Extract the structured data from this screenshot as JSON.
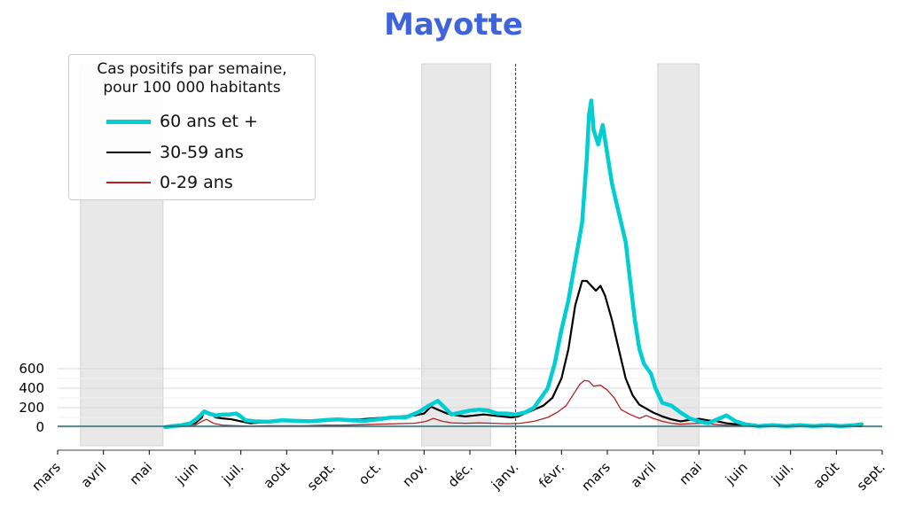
{
  "title": "Mayotte",
  "legend": {
    "title_line1": "Cas positifs par semaine,",
    "title_line2": "pour 100 000 habitants",
    "items": [
      {
        "label": "60 ans et +",
        "color": "#00ced1"
      },
      {
        "label": "30-59 ans",
        "color": "#000000"
      },
      {
        "label": "0-29 ans",
        "color": "#b22222"
      }
    ]
  },
  "chart_data": {
    "type": "line",
    "title": "Mayotte",
    "xlabel": "",
    "ylabel": "",
    "x_tick_labels": [
      "mars",
      "avril",
      "mai",
      "juin",
      "juil.",
      "août",
      "sept.",
      "oct.",
      "nov.",
      "déc.",
      "janv.",
      "févr.",
      "mars",
      "avril",
      "mai",
      "juin",
      "juil.",
      "août",
      "sept."
    ],
    "y_ticks": [
      0,
      200,
      400,
      600
    ],
    "ylim": [
      -200,
      3500
    ],
    "x_unit": "months since 2020-03-01",
    "xlim": [
      0,
      18
    ],
    "grid": "horizontal",
    "shaded_periods": [
      [
        0.5,
        2.3
      ],
      [
        7.95,
        9.45
      ],
      [
        13.1,
        14.0
      ]
    ],
    "vertical_marker": 10,
    "series": [
      {
        "name": "60 ans et +",
        "color": "#00ced1",
        "points": [
          [
            2.35,
            0
          ],
          [
            2.5,
            10
          ],
          [
            2.7,
            20
          ],
          [
            2.9,
            40
          ],
          [
            3.05,
            90
          ],
          [
            3.2,
            160
          ],
          [
            3.3,
            140
          ],
          [
            3.45,
            120
          ],
          [
            3.6,
            130
          ],
          [
            3.75,
            130
          ],
          [
            3.9,
            140
          ],
          [
            4.0,
            110
          ],
          [
            4.1,
            70
          ],
          [
            4.3,
            60
          ],
          [
            4.6,
            55
          ],
          [
            4.9,
            70
          ],
          [
            5.2,
            65
          ],
          [
            5.5,
            60
          ],
          [
            5.8,
            70
          ],
          [
            6.1,
            80
          ],
          [
            6.4,
            70
          ],
          [
            6.7,
            65
          ],
          [
            7.0,
            80
          ],
          [
            7.3,
            100
          ],
          [
            7.6,
            100
          ],
          [
            7.9,
            160
          ],
          [
            8.1,
            220
          ],
          [
            8.3,
            270
          ],
          [
            8.45,
            200
          ],
          [
            8.6,
            130
          ],
          [
            8.8,
            150
          ],
          [
            9.0,
            170
          ],
          [
            9.2,
            180
          ],
          [
            9.4,
            170
          ],
          [
            9.6,
            140
          ],
          [
            9.8,
            140
          ],
          [
            10.0,
            130
          ],
          [
            10.2,
            150
          ],
          [
            10.4,
            200
          ],
          [
            10.55,
            300
          ],
          [
            10.7,
            400
          ],
          [
            10.85,
            650
          ],
          [
            11.0,
            1000
          ],
          [
            11.15,
            1300
          ],
          [
            11.3,
            1700
          ],
          [
            11.45,
            2100
          ],
          [
            11.55,
            2750
          ],
          [
            11.6,
            3200
          ],
          [
            11.65,
            3350
          ],
          [
            11.7,
            3050
          ],
          [
            11.8,
            2900
          ],
          [
            11.9,
            3100
          ],
          [
            12.0,
            2800
          ],
          [
            12.1,
            2500
          ],
          [
            12.2,
            2300
          ],
          [
            12.3,
            2100
          ],
          [
            12.4,
            1900
          ],
          [
            12.5,
            1500
          ],
          [
            12.6,
            1100
          ],
          [
            12.7,
            800
          ],
          [
            12.8,
            650
          ],
          [
            12.95,
            550
          ],
          [
            13.05,
            400
          ],
          [
            13.2,
            250
          ],
          [
            13.4,
            220
          ],
          [
            13.6,
            150
          ],
          [
            13.8,
            90
          ],
          [
            14.0,
            60
          ],
          [
            14.2,
            40
          ],
          [
            14.4,
            80
          ],
          [
            14.6,
            120
          ],
          [
            14.8,
            60
          ],
          [
            15.0,
            30
          ],
          [
            15.3,
            10
          ],
          [
            15.6,
            20
          ],
          [
            15.9,
            10
          ],
          [
            16.2,
            20
          ],
          [
            16.5,
            10
          ],
          [
            16.8,
            20
          ],
          [
            17.1,
            10
          ],
          [
            17.4,
            20
          ],
          [
            17.55,
            30
          ]
        ]
      },
      {
        "name": "30-59 ans",
        "color": "#000000",
        "points": [
          [
            2.35,
            0
          ],
          [
            2.6,
            10
          ],
          [
            2.8,
            20
          ],
          [
            3.0,
            40
          ],
          [
            3.15,
            100
          ],
          [
            3.2,
            170
          ],
          [
            3.3,
            150
          ],
          [
            3.45,
            100
          ],
          [
            3.6,
            90
          ],
          [
            3.8,
            80
          ],
          [
            4.0,
            60
          ],
          [
            4.2,
            40
          ],
          [
            4.5,
            50
          ],
          [
            4.8,
            60
          ],
          [
            5.1,
            60
          ],
          [
            5.4,
            60
          ],
          [
            5.7,
            60
          ],
          [
            6.0,
            70
          ],
          [
            6.3,
            80
          ],
          [
            6.6,
            80
          ],
          [
            6.9,
            90
          ],
          [
            7.2,
            100
          ],
          [
            7.5,
            110
          ],
          [
            7.8,
            120
          ],
          [
            8.0,
            140
          ],
          [
            8.15,
            210
          ],
          [
            8.3,
            180
          ],
          [
            8.5,
            140
          ],
          [
            8.7,
            120
          ],
          [
            8.9,
            110
          ],
          [
            9.1,
            120
          ],
          [
            9.3,
            130
          ],
          [
            9.5,
            120
          ],
          [
            9.7,
            110
          ],
          [
            9.9,
            100
          ],
          [
            10.05,
            110
          ],
          [
            10.2,
            140
          ],
          [
            10.4,
            180
          ],
          [
            10.6,
            220
          ],
          [
            10.8,
            300
          ],
          [
            11.0,
            500
          ],
          [
            11.15,
            800
          ],
          [
            11.3,
            1250
          ],
          [
            11.45,
            1500
          ],
          [
            11.55,
            1500
          ],
          [
            11.65,
            1450
          ],
          [
            11.75,
            1400
          ],
          [
            11.85,
            1450
          ],
          [
            11.95,
            1350
          ],
          [
            12.1,
            1100
          ],
          [
            12.25,
            800
          ],
          [
            12.4,
            500
          ],
          [
            12.55,
            330
          ],
          [
            12.7,
            230
          ],
          [
            12.85,
            190
          ],
          [
            13.0,
            150
          ],
          [
            13.2,
            110
          ],
          [
            13.4,
            80
          ],
          [
            13.6,
            60
          ],
          [
            13.8,
            75
          ],
          [
            14.0,
            85
          ],
          [
            14.2,
            70
          ],
          [
            14.4,
            60
          ],
          [
            14.6,
            40
          ],
          [
            14.8,
            30
          ],
          [
            15.0,
            20
          ],
          [
            15.3,
            15
          ],
          [
            15.6,
            15
          ],
          [
            15.9,
            10
          ],
          [
            16.2,
            10
          ],
          [
            16.5,
            10
          ],
          [
            16.8,
            10
          ],
          [
            17.1,
            10
          ],
          [
            17.55,
            10
          ]
        ]
      },
      {
        "name": "0-29 ans",
        "color": "#b22222",
        "points": [
          [
            2.35,
            0
          ],
          [
            2.7,
            5
          ],
          [
            3.0,
            20
          ],
          [
            3.15,
            60
          ],
          [
            3.25,
            80
          ],
          [
            3.4,
            40
          ],
          [
            3.6,
            20
          ],
          [
            3.9,
            15
          ],
          [
            4.2,
            10
          ],
          [
            4.6,
            15
          ],
          [
            5.0,
            15
          ],
          [
            5.4,
            15
          ],
          [
            5.8,
            20
          ],
          [
            6.2,
            20
          ],
          [
            6.6,
            25
          ],
          [
            7.0,
            30
          ],
          [
            7.4,
            35
          ],
          [
            7.8,
            40
          ],
          [
            8.05,
            60
          ],
          [
            8.2,
            90
          ],
          [
            8.4,
            60
          ],
          [
            8.6,
            45
          ],
          [
            8.9,
            40
          ],
          [
            9.2,
            45
          ],
          [
            9.5,
            40
          ],
          [
            9.8,
            35
          ],
          [
            10.1,
            40
          ],
          [
            10.4,
            60
          ],
          [
            10.7,
            100
          ],
          [
            10.9,
            150
          ],
          [
            11.1,
            220
          ],
          [
            11.25,
            330
          ],
          [
            11.4,
            440
          ],
          [
            11.5,
            480
          ],
          [
            11.6,
            470
          ],
          [
            11.7,
            420
          ],
          [
            11.85,
            430
          ],
          [
            12.0,
            380
          ],
          [
            12.15,
            300
          ],
          [
            12.3,
            180
          ],
          [
            12.5,
            130
          ],
          [
            12.7,
            90
          ],
          [
            12.85,
            120
          ],
          [
            13.0,
            90
          ],
          [
            13.2,
            60
          ],
          [
            13.4,
            40
          ],
          [
            13.6,
            30
          ],
          [
            13.8,
            35
          ],
          [
            14.0,
            40
          ],
          [
            14.3,
            30
          ],
          [
            14.6,
            20
          ],
          [
            15.0,
            15
          ],
          [
            15.4,
            10
          ],
          [
            15.8,
            10
          ],
          [
            16.2,
            5
          ],
          [
            16.6,
            5
          ],
          [
            17.0,
            5
          ],
          [
            17.55,
            5
          ]
        ]
      }
    ]
  }
}
